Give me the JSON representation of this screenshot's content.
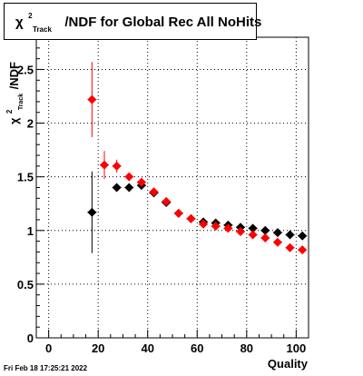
{
  "chart_data": {
    "type": "scatter",
    "title": "χ²Track/NDF for Global Rec All NoHits",
    "title_parts": {
      "chi": "χ",
      "sup": "2",
      "sub": "Track",
      "rest": "/NDF for Global Rec All NoHits"
    },
    "xlabel": "Quality",
    "ylabel_parts": {
      "chi": "χ",
      "sup": "2",
      "sub": "Track",
      "rest": "/NDF"
    },
    "xlim": [
      -5,
      105
    ],
    "ylim": [
      0,
      2.8
    ],
    "xticks": [
      0,
      20,
      40,
      60,
      80,
      100
    ],
    "yticks": [
      0,
      0.5,
      1,
      1.5,
      2,
      2.5
    ],
    "ytick_labels": [
      "0",
      "0.5",
      "1",
      "1.5",
      "2",
      "2.5"
    ],
    "grid": true,
    "series": [
      {
        "color": "#000000",
        "x": [
          17.5,
          27.5,
          32.5,
          37.5,
          42.5,
          47.5,
          52.5,
          57.5,
          62.5,
          67.5,
          72.5,
          77.5,
          82.5,
          87.5,
          92.5,
          97.5,
          102.5
        ],
        "y": [
          1.17,
          1.4,
          1.4,
          1.42,
          1.35,
          1.26,
          1.16,
          1.11,
          1.08,
          1.07,
          1.05,
          1.03,
          1.02,
          1.0,
          0.98,
          0.96,
          0.95
        ],
        "err": [
          0.38,
          0.03,
          0.02,
          0.02,
          0.02,
          0.02,
          0.01,
          0.01,
          0.01,
          0.01,
          0.01,
          0.01,
          0.01,
          0.01,
          0.01,
          0.01,
          0.01
        ]
      },
      {
        "color": "#ff0000",
        "x": [
          17.5,
          22.5,
          27.5,
          32.5,
          37.5,
          42.5,
          47.5,
          52.5,
          57.5,
          62.5,
          67.5,
          72.5,
          77.5,
          82.5,
          87.5,
          92.5,
          97.5,
          102.5
        ],
        "y": [
          2.22,
          1.61,
          1.6,
          1.5,
          1.45,
          1.36,
          1.27,
          1.16,
          1.11,
          1.06,
          1.04,
          1.02,
          0.99,
          0.96,
          0.93,
          0.89,
          0.84,
          0.82
        ],
        "err": [
          0.35,
          0.13,
          0.06,
          0.03,
          0.02,
          0.02,
          0.02,
          0.01,
          0.01,
          0.01,
          0.01,
          0.01,
          0.01,
          0.01,
          0.01,
          0.01,
          0.01,
          0.01
        ]
      }
    ]
  },
  "footer": {
    "timestamp": "Fri Feb 18 17:25:21 2022"
  }
}
